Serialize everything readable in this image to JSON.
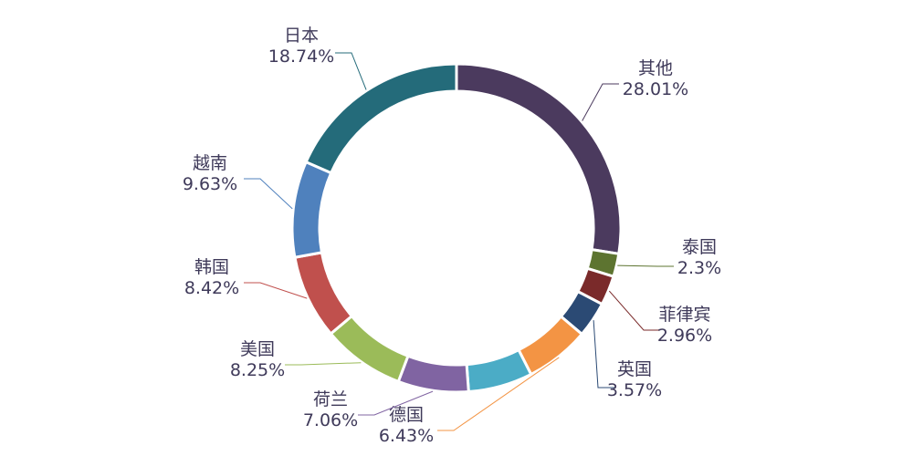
{
  "chart_data": {
    "type": "pie",
    "variant": "donut",
    "title": "",
    "legend": "none",
    "slices": [
      {
        "label": "其他",
        "value": 28.01,
        "value_label": "28.01%",
        "color": "#4b3a5e"
      },
      {
        "label": "泰国",
        "value": 2.3,
        "value_label": "2.3%",
        "color": "#5d7430"
      },
      {
        "label": "菲律宾",
        "value": 2.96,
        "value_label": "2.96%",
        "color": "#7a2a2a"
      },
      {
        "label": "英国",
        "value": 3.57,
        "value_label": "3.57%",
        "color": "#2b4a74"
      },
      {
        "label": "德国",
        "value": 6.43,
        "value_label": "6.43%",
        "color": "#f39444"
      },
      {
        "label": "德国",
        "value": 6.43,
        "value_label": "",
        "color": "#4bacc6"
      },
      {
        "label": "荷兰",
        "value": 7.06,
        "value_label": "7.06%",
        "color": "#8064a2"
      },
      {
        "label": "美国",
        "value": 8.25,
        "value_label": "8.25%",
        "color": "#9bbb59"
      },
      {
        "label": "韩国",
        "value": 8.42,
        "value_label": "8.42%",
        "color": "#c0504d"
      },
      {
        "label": "越南",
        "value": 9.63,
        "value_label": "9.63%",
        "color": "#4f81bd"
      },
      {
        "label": "日本",
        "value": 18.74,
        "value_label": "18.74%",
        "color": "#246b7a"
      }
    ]
  }
}
